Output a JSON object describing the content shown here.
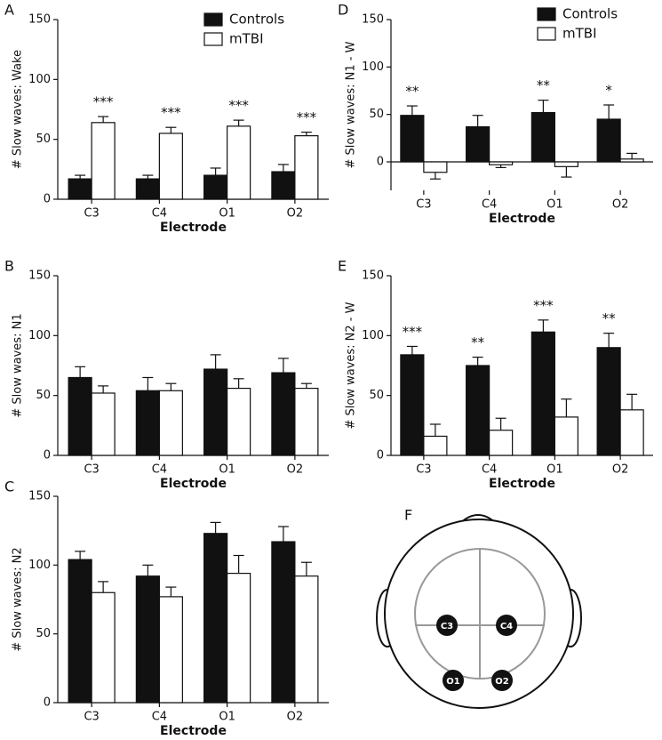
{
  "chart_data": [
    {
      "type": "bar",
      "panel": "A",
      "ylabel": "# Slow waves:  Wake",
      "xlabel": "Electrode",
      "categories": [
        "C3",
        "C4",
        "O1",
        "O2"
      ],
      "ylim": [
        0,
        150
      ],
      "yticks": [
        0,
        50,
        100,
        150
      ],
      "series": [
        {
          "name": "Controls",
          "color": "#111111",
          "values": [
            17,
            17,
            20,
            23
          ],
          "errors": [
            3,
            3,
            6,
            6
          ]
        },
        {
          "name": "mTBI",
          "color": "#ffffff",
          "values": [
            64,
            55,
            61,
            53
          ],
          "errors": [
            5,
            5,
            5,
            3
          ]
        }
      ],
      "annotations": [
        "***",
        "***",
        "***",
        "***"
      ]
    },
    {
      "type": "bar",
      "panel": "B",
      "ylabel": "# Slow waves:  N1",
      "xlabel": "Electrode",
      "categories": [
        "C3",
        "C4",
        "O1",
        "O2"
      ],
      "ylim": [
        0,
        150
      ],
      "yticks": [
        0,
        50,
        100,
        150
      ],
      "series": [
        {
          "color": "#111111",
          "values": [
            65,
            54,
            72,
            69
          ],
          "errors": [
            9,
            11,
            12,
            12
          ]
        },
        {
          "color": "#ffffff",
          "values": [
            52,
            54,
            56,
            56
          ],
          "errors": [
            6,
            6,
            8,
            4
          ]
        }
      ]
    },
    {
      "type": "bar",
      "panel": "C",
      "ylabel": "# Slow waves:  N2",
      "xlabel": "Electrode",
      "categories": [
        "C3",
        "C4",
        "O1",
        "O2"
      ],
      "ylim": [
        0,
        150
      ],
      "yticks": [
        0,
        50,
        100,
        150
      ],
      "series": [
        {
          "color": "#111111",
          "values": [
            104,
            92,
            123,
            117
          ],
          "errors": [
            6,
            8,
            8,
            11
          ]
        },
        {
          "color": "#ffffff",
          "values": [
            80,
            77,
            94,
            92
          ],
          "errors": [
            8,
            7,
            13,
            10
          ]
        }
      ]
    },
    {
      "type": "bar",
      "panel": "D",
      "ylabel": "# Slow waves:  N1 - W",
      "xlabel": "Electrode",
      "categories": [
        "C3",
        "C4",
        "O1",
        "O2"
      ],
      "ylim": [
        -30,
        150
      ],
      "yticks": [
        0,
        50,
        100,
        150
      ],
      "series": [
        {
          "name": "Controls",
          "color": "#111111",
          "values": [
            49,
            37,
            52,
            45
          ],
          "errors": [
            10,
            12,
            13,
            15
          ]
        },
        {
          "name": "mTBI",
          "color": "#ffffff",
          "values": [
            -11,
            -3,
            -5,
            3
          ],
          "errors": [
            7,
            3,
            11,
            6
          ]
        }
      ],
      "annotations": [
        "**",
        null,
        "**",
        "*"
      ]
    },
    {
      "type": "bar",
      "panel": "E",
      "ylabel": "# Slow waves:  N2 - W",
      "xlabel": "Electrode",
      "categories": [
        "C3",
        "C4",
        "O1",
        "O2"
      ],
      "ylim": [
        0,
        150
      ],
      "yticks": [
        0,
        50,
        100,
        150
      ],
      "series": [
        {
          "color": "#111111",
          "values": [
            84,
            75,
            103,
            90
          ],
          "errors": [
            7,
            7,
            10,
            12
          ]
        },
        {
          "color": "#ffffff",
          "values": [
            16,
            21,
            32,
            38
          ],
          "errors": [
            10,
            10,
            15,
            13
          ]
        }
      ],
      "annotations": [
        "***",
        "**",
        "***",
        "**"
      ]
    }
  ],
  "diagram": {
    "panel": "F",
    "electrodes": [
      "C3",
      "C4",
      "O1",
      "O2"
    ]
  }
}
